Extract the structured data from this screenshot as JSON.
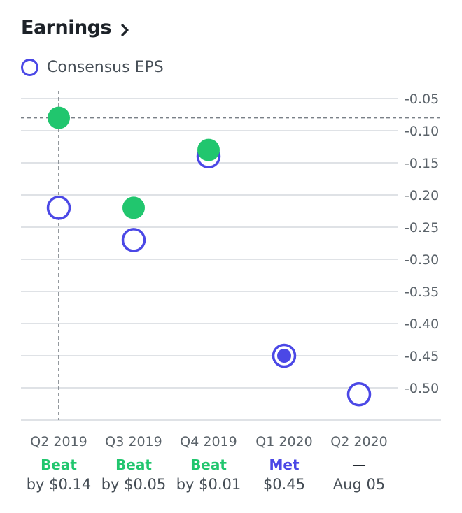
{
  "header": {
    "title": "Earnings"
  },
  "legend": {
    "label": "Consensus EPS"
  },
  "colors": {
    "beat": "#21c66e",
    "met": "#4b48e6",
    "consensus": "#4b48e6",
    "grid": "#dfe2e6",
    "axis_text": "#5b636a"
  },
  "chart_data": {
    "type": "scatter",
    "title": "",
    "categories": [
      "Q2 2019",
      "Q3 2019",
      "Q4 2019",
      "Q1 2020",
      "Q2 2020"
    ],
    "series": [
      {
        "name": "Consensus EPS",
        "values": [
          -0.22,
          -0.27,
          -0.14,
          -0.45,
          -0.51
        ]
      },
      {
        "values": [
          -0.08,
          -0.22,
          -0.13,
          -0.45,
          null
        ]
      }
    ],
    "ylim": [
      -0.55,
      -0.05
    ],
    "yticks": [
      "-0.05",
      "-0.10",
      "-0.15",
      "-0.20",
      "-0.25",
      "-0.30",
      "-0.35",
      "-0.40",
      "-0.45",
      "-0.50"
    ],
    "crosshair": {
      "category": "Q2 2019",
      "value": -0.08
    },
    "results": [
      {
        "status": "Beat",
        "detail": "by $0.14",
        "kind": "beat"
      },
      {
        "status": "Beat",
        "detail": "by $0.05",
        "kind": "beat"
      },
      {
        "status": "Beat",
        "detail": "by $0.01",
        "kind": "beat"
      },
      {
        "status": "Met",
        "detail": "$0.45",
        "kind": "met"
      },
      {
        "status": "—",
        "detail": "Aug 05",
        "kind": "upcoming"
      }
    ]
  }
}
